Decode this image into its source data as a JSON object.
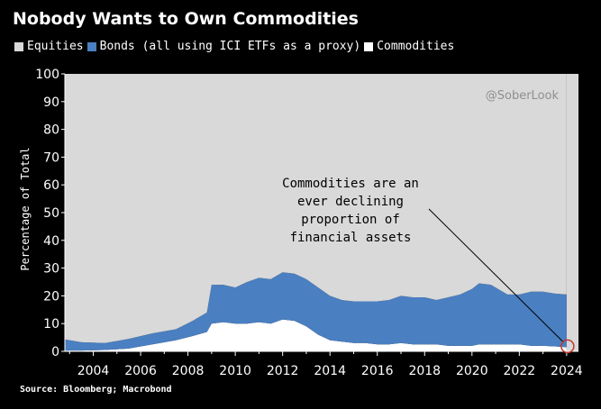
{
  "title": "Nobody Wants to Own Commodities",
  "source": "Source: Bloomberg; Macrobond",
  "watermark": "@SoberLook",
  "legend": [
    {
      "label": "Equities",
      "color": "#d9d9d9"
    },
    {
      "label": "Bonds (all using ICI ETFs as a proxy)",
      "color": "#4a7fc1"
    },
    {
      "label": "Commodities",
      "color": "#ffffff"
    }
  ],
  "chart_data": {
    "type": "area",
    "stacked": true,
    "ylabel": "Percentage of Total",
    "ylim": [
      0,
      100
    ],
    "yticks": [
      0,
      10,
      20,
      30,
      40,
      50,
      60,
      70,
      80,
      90,
      100
    ],
    "xlim": [
      2002.8,
      2024.5
    ],
    "xticks": [
      2004,
      2006,
      2008,
      2010,
      2012,
      2014,
      2016,
      2018,
      2020,
      2022,
      2024
    ],
    "annotation": [
      "Commodities are an",
      "ever declining",
      "proportion of",
      "financial assets"
    ],
    "x": [
      2002.8,
      2003.5,
      2004.5,
      2005.5,
      2006.5,
      2007.5,
      2008.2,
      2008.8,
      2009.0,
      2009.5,
      2010.0,
      2010.5,
      2011.0,
      2011.5,
      2012.0,
      2012.5,
      2013.0,
      2013.5,
      2014.0,
      2014.5,
      2015.0,
      2015.5,
      2016.0,
      2016.5,
      2017.0,
      2017.5,
      2018.0,
      2018.5,
      2019.0,
      2019.5,
      2020.0,
      2020.3,
      2020.8,
      2021.5,
      2022.0,
      2022.5,
      2023.0,
      2023.5,
      2024.0
    ],
    "series": [
      {
        "name": "Commodities",
        "values": [
          0.3,
          0.3,
          0.5,
          1.0,
          2.5,
          4.0,
          5.5,
          7.0,
          10.0,
          10.5,
          10.0,
          10.0,
          10.5,
          10.0,
          11.5,
          11.0,
          9.0,
          6.0,
          4.0,
          3.5,
          3.0,
          3.0,
          2.5,
          2.5,
          3.0,
          2.5,
          2.5,
          2.5,
          2.0,
          2.0,
          2.0,
          2.5,
          2.5,
          2.5,
          2.5,
          2.0,
          2.0,
          1.8,
          1.5
        ]
      },
      {
        "name": "Bonds (all using ICI ETFs as a proxy)",
        "values": [
          4.0,
          3.0,
          2.5,
          3.5,
          4.0,
          4.0,
          5.5,
          7.0,
          14.0,
          13.5,
          13.0,
          15.0,
          16.0,
          16.0,
          17.0,
          17.0,
          17.0,
          17.0,
          16.0,
          15.0,
          15.0,
          15.0,
          15.5,
          16.0,
          17.0,
          17.0,
          17.0,
          16.0,
          17.5,
          18.5,
          20.5,
          22.0,
          21.5,
          18.0,
          18.0,
          19.5,
          19.5,
          19.0,
          19.0
        ]
      },
      {
        "name": "Equities",
        "values": [
          95.7,
          96.7,
          97.0,
          95.5,
          93.5,
          92.0,
          89.0,
          86.0,
          76.0,
          76.0,
          77.0,
          75.0,
          73.5,
          74.0,
          71.5,
          72.0,
          74.0,
          77.0,
          80.0,
          81.5,
          82.0,
          82.0,
          82.0,
          81.5,
          80.0,
          80.5,
          80.5,
          81.5,
          80.5,
          79.5,
          77.5,
          75.5,
          76.0,
          79.5,
          79.5,
          78.5,
          78.5,
          79.2,
          79.5
        ]
      }
    ]
  }
}
